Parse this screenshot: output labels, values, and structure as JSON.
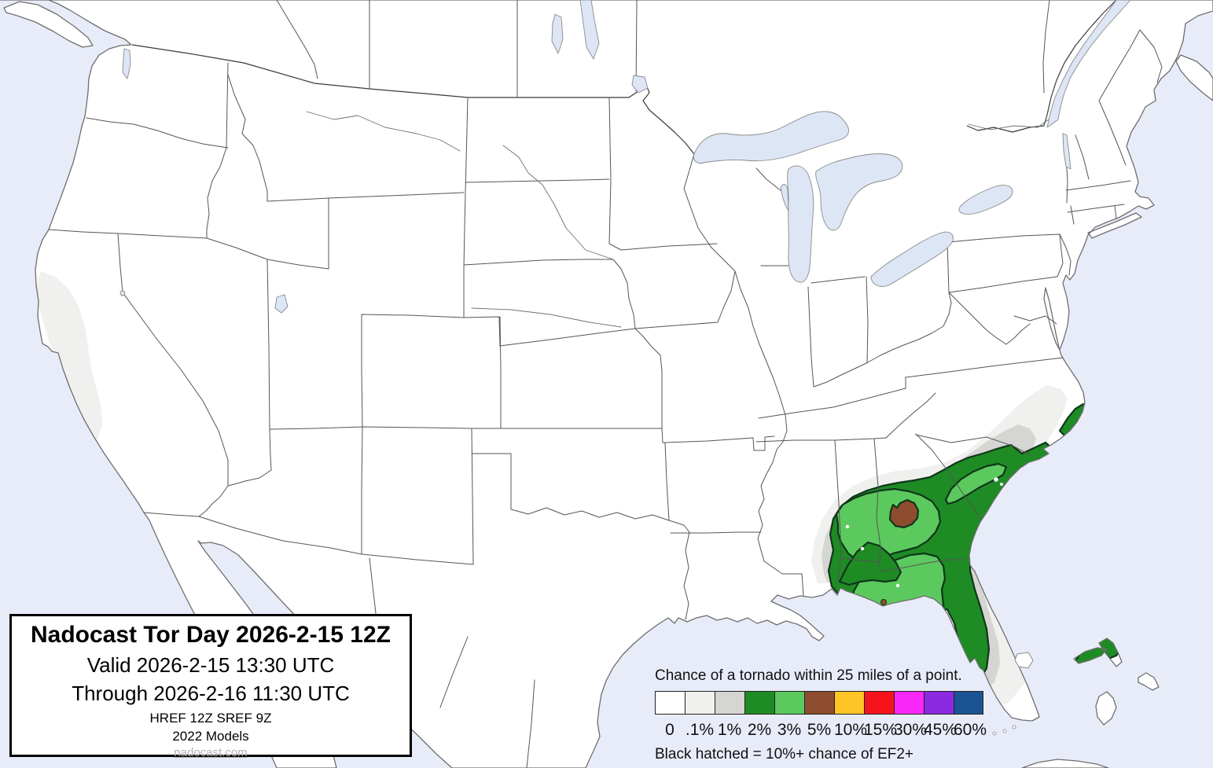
{
  "title_box": {
    "title": "Nadocast Tor Day 2026-2-15 12Z",
    "valid": "Valid 2026-2-15 13:30 UTC",
    "through": "Through 2026-2-16 11:30 UTC",
    "models_line1": "HREF 12Z SREF 9Z",
    "models_line2": "2022 Models",
    "link": "nadocast.com"
  },
  "legend": {
    "heading": "Chance of a tornado within 25 miles of a point.",
    "note": "Black hatched = 10%+ chance of EF2+",
    "items": [
      {
        "label": "0",
        "color": "#FFFFFF"
      },
      {
        "label": ".1%",
        "color": "#F0F0EE"
      },
      {
        "label": "1%",
        "color": "#D5D5D3"
      },
      {
        "label": "2%",
        "color": "#1E8B25"
      },
      {
        "label": "3%",
        "color": "#5CC95E"
      },
      {
        "label": "5%",
        "color": "#8E4D2E"
      },
      {
        "label": "10%",
        "color": "#FFC527"
      },
      {
        "label": "15%",
        "color": "#F5141C"
      },
      {
        "label": "30%",
        "color": "#FA28FA"
      },
      {
        "label": "45%",
        "color": "#8A2BE2"
      },
      {
        "label": "60%",
        "color": "#1B5394"
      }
    ]
  },
  "map": {
    "ocean_color": "#E8ECF9",
    "lake_color": "#DDE6F5",
    "land_color": "#FFFFFF",
    "contour_summary": {
      "type": "probability-contours",
      "region": "Southeastern United States",
      "levels_shown": [
        ".1%",
        "1%",
        "2%",
        "3%",
        "5%"
      ],
      "max_level": "5%",
      "max_level_location": "central Georgia",
      "notes": "2% and 3% cover Alabama, Georgia, Florida panhandle, coastal Carolinas; 2% spots on NC Outer Banks and Grand Bahama; no hatched EF2+ area shown"
    }
  }
}
